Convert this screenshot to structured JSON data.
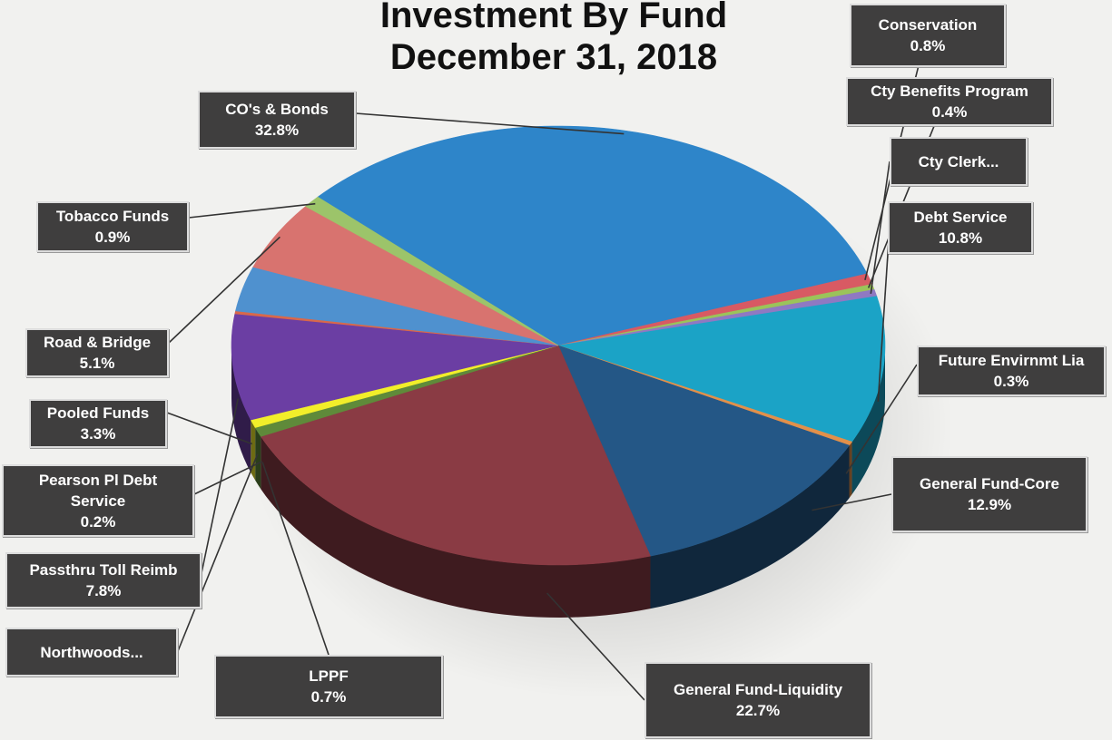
{
  "title_line1": "Investment By Fund",
  "title_line2": "December 31, 2018",
  "chart_data": {
    "type": "pie",
    "title": "Investment By Fund December 31, 2018",
    "slices": [
      {
        "name": "CO's & Bonds",
        "value": 32.8,
        "label": "32.8%",
        "color": "#2e85c9"
      },
      {
        "name": "Conservation",
        "value": 0.8,
        "label": "0.8%",
        "color": "#d85a63"
      },
      {
        "name": "Cty Benefits Program",
        "value": 0.4,
        "label": "0.4%",
        "color": "#9bc35a"
      },
      {
        "name": "Cty Clerk...",
        "value": 0.5,
        "label": "",
        "color": "#8f79c2"
      },
      {
        "name": "Debt Service",
        "value": 10.8,
        "label": "10.8%",
        "color": "#1ba3c6"
      },
      {
        "name": "Future Envirnmt Lia",
        "value": 0.3,
        "label": "0.3%",
        "color": "#e2904a"
      },
      {
        "name": "General Fund-Core",
        "value": 12.9,
        "label": "12.9%",
        "color": "#245786"
      },
      {
        "name": "General Fund-Liquidity",
        "value": 22.7,
        "label": "22.7%",
        "color": "#8a3b44"
      },
      {
        "name": "LPPF",
        "value": 0.7,
        "label": "0.7%",
        "color": "#5f8a3a"
      },
      {
        "name": "Northwoods...",
        "value": 0.6,
        "label": "",
        "color": "#f2ee2a"
      },
      {
        "name": "Passthru Toll Reimb",
        "value": 7.8,
        "label": "7.8%",
        "color": "#6b3ea3"
      },
      {
        "name": "Pearson Pl Debt Service",
        "value": 0.2,
        "label": "0.2%",
        "color": "#d9684a"
      },
      {
        "name": "Pooled Funds",
        "value": 3.3,
        "label": "3.3%",
        "color": "#4f91cf"
      },
      {
        "name": "Road & Bridge",
        "value": 5.1,
        "label": "5.1%",
        "color": "#d8736f"
      },
      {
        "name": "Tobacco Funds",
        "value": 0.9,
        "label": "0.9%",
        "color": "#9cc46a"
      }
    ]
  },
  "callouts": [
    {
      "name": "Conservation",
      "lines": [
        "Conservation",
        "0.8%"
      ]
    },
    {
      "name": "Cty Benefits Program",
      "lines": [
        "Cty Benefits Program",
        "0.4%"
      ]
    },
    {
      "name": "Cty Clerk...",
      "lines": [
        "Cty Clerk..."
      ]
    },
    {
      "name": "Debt Service",
      "lines": [
        "Debt Service",
        "10.8%"
      ]
    },
    {
      "name": "Future Envirnmt Lia",
      "lines": [
        "Future Envirnmt Lia",
        "0.3%"
      ]
    },
    {
      "name": "General Fund-Core",
      "lines": [
        "General Fund-Core",
        "12.9%"
      ]
    },
    {
      "name": "General Fund-Liquidity",
      "lines": [
        "General Fund-Liquidity",
        "22.7%"
      ]
    },
    {
      "name": "LPPF",
      "lines": [
        "LPPF",
        "0.7%"
      ]
    },
    {
      "name": "Northwoods...",
      "lines": [
        "Northwoods..."
      ]
    },
    {
      "name": "Passthru Toll Reimb",
      "lines": [
        "Passthru Toll Reimb",
        "7.8%"
      ]
    },
    {
      "name": "Pearson Pl Debt Service",
      "lines": [
        "Pearson Pl Debt",
        "Service",
        "0.2%"
      ]
    },
    {
      "name": "Pooled Funds",
      "lines": [
        "Pooled Funds",
        "3.3%"
      ]
    },
    {
      "name": "Road & Bridge",
      "lines": [
        "Road & Bridge",
        "5.1%"
      ]
    },
    {
      "name": "Tobacco Funds",
      "lines": [
        "Tobacco Funds",
        "0.9%"
      ]
    },
    {
      "name": "CO's & Bonds",
      "lines": [
        "CO's & Bonds",
        "32.8%"
      ]
    }
  ]
}
